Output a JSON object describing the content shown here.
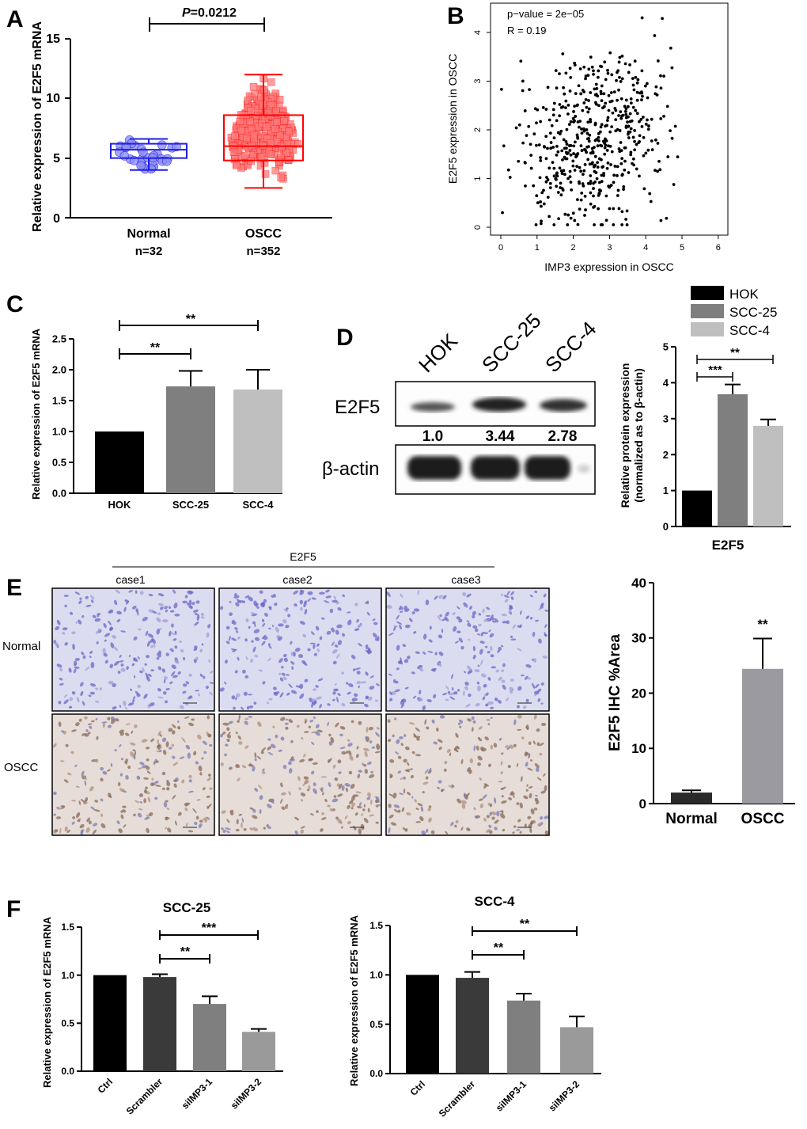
{
  "panels": {
    "A": {
      "letter": "A",
      "pval": "P=0.0212",
      "pval_prefix": "P",
      "pval_rest": "=0.0212",
      "ylabel": "Relative expression of E2F5 mRNA",
      "g1": "Normal",
      "g1n": "n=32",
      "g2": "OSCC",
      "g2n": "n=352"
    },
    "B": {
      "letter": "B",
      "ann1": "p−value = 2e−05",
      "ann2": "R = 0.19",
      "xlabel": "IMP3 expression in OSCC",
      "ylabel": "E2F5 expression in OSCC"
    },
    "C": {
      "letter": "C",
      "ylabel": "Relative expression of E2F5 mRNA",
      "sig1": "**",
      "sig2": "**"
    },
    "D": {
      "letter": "D",
      "lane1": "HOK",
      "lane2": "SCC-25",
      "lane3": "SCC-4",
      "band1": "E2F5",
      "band2": "β-actin",
      "q1": "1.0",
      "q2": "3.44",
      "q3": "2.78",
      "legend": [
        "HOK",
        "SCC-25",
        "SCC-4"
      ],
      "ylabel1": "Relative protein expression",
      "ylabel2": "(normalized as to β-actin)",
      "xlabel": "E2F5",
      "sig1": "***",
      "sig2": "**"
    },
    "E": {
      "letter": "E",
      "header": "E2F5",
      "case1": "case1",
      "case2": "case2",
      "case3": "case3",
      "row1": "Normal",
      "row2": "OSCC",
      "ylabel": "E2F5 IHC %Area",
      "sig": "**"
    },
    "F": {
      "letter": "F",
      "title1": "SCC-25",
      "title2": "SCC-4",
      "ylabel": "Relative expression of E2F5 mRNA",
      "sig1a": "**",
      "sig1b": "***",
      "sig2a": "**",
      "sig2b": "**"
    }
  },
  "colors": {
    "black": "#000000",
    "darkgray": "#3a3a3a",
    "midgray": "#7f7f7f",
    "lightgray": "#bfbfbf",
    "blue": "#1f1fe6",
    "red": "#ff0000"
  },
  "chart_data": [
    {
      "panel": "A",
      "type": "scatter",
      "categories": [
        "Normal",
        "OSCC"
      ],
      "ylim": [
        0,
        15
      ],
      "yticks": [
        0,
        5,
        10,
        15
      ],
      "box": [
        {
          "category": "Normal",
          "min": 4.0,
          "q1": 5.0,
          "median": 5.7,
          "q3": 6.2,
          "max": 6.6
        },
        {
          "category": "OSCC",
          "min": 2.5,
          "q1": 4.8,
          "median": 6.0,
          "q3": 8.6,
          "max": 12.0
        }
      ]
    },
    {
      "panel": "B",
      "type": "scatter",
      "xlim": [
        0,
        6
      ],
      "ylim": [
        0,
        4.5
      ],
      "xticks": [
        0,
        1,
        2,
        3,
        4,
        5,
        6
      ],
      "yticks": [
        0,
        1,
        2,
        3,
        4
      ]
    },
    {
      "panel": "C",
      "type": "bar",
      "categories": [
        "HOK",
        "SCC-25",
        "SCC-4"
      ],
      "values": [
        1.0,
        1.73,
        1.68
      ],
      "errors": [
        0,
        0.25,
        0.32
      ],
      "ylim": [
        0,
        2.5
      ],
      "yticks": [
        "0.0",
        "0.5",
        "1.0",
        "1.5",
        "2.0",
        "2.5"
      ]
    },
    {
      "panel": "D",
      "type": "bar",
      "categories": [
        "HOK",
        "SCC-25",
        "SCC-4"
      ],
      "values": [
        1.0,
        3.68,
        2.8
      ],
      "errors": [
        0,
        0.27,
        0.18
      ],
      "ylim": [
        0,
        5
      ],
      "yticks": [
        0,
        1,
        2,
        3,
        4,
        5
      ]
    },
    {
      "panel": "E",
      "type": "bar",
      "categories": [
        "Normal",
        "OSCC"
      ],
      "values": [
        2.0,
        24.4
      ],
      "errors": [
        0.4,
        5.5
      ],
      "ylim": [
        0,
        40
      ],
      "yticks": [
        0,
        10,
        20,
        30,
        40
      ]
    },
    {
      "panel": "F-SCC-25",
      "type": "bar",
      "categories": [
        "Ctrl",
        "Scrambler",
        "siIMP3-1",
        "siIMP3-2"
      ],
      "values": [
        1.0,
        0.98,
        0.7,
        0.41
      ],
      "errors": [
        0,
        0.03,
        0.08,
        0.03
      ],
      "ylim": [
        0,
        1.5
      ],
      "yticks": [
        "0.0",
        "0.5",
        "1.0",
        "1.5"
      ]
    },
    {
      "panel": "F-SCC-4",
      "type": "bar",
      "categories": [
        "Ctrl",
        "Scrambler",
        "siIMP3-1",
        "siIMP3-2"
      ],
      "values": [
        1.0,
        0.97,
        0.74,
        0.47
      ],
      "errors": [
        0,
        0.06,
        0.07,
        0.11
      ],
      "ylim": [
        0,
        1.5
      ],
      "yticks": [
        "0.0",
        "0.5",
        "1.0",
        "1.5"
      ]
    }
  ]
}
